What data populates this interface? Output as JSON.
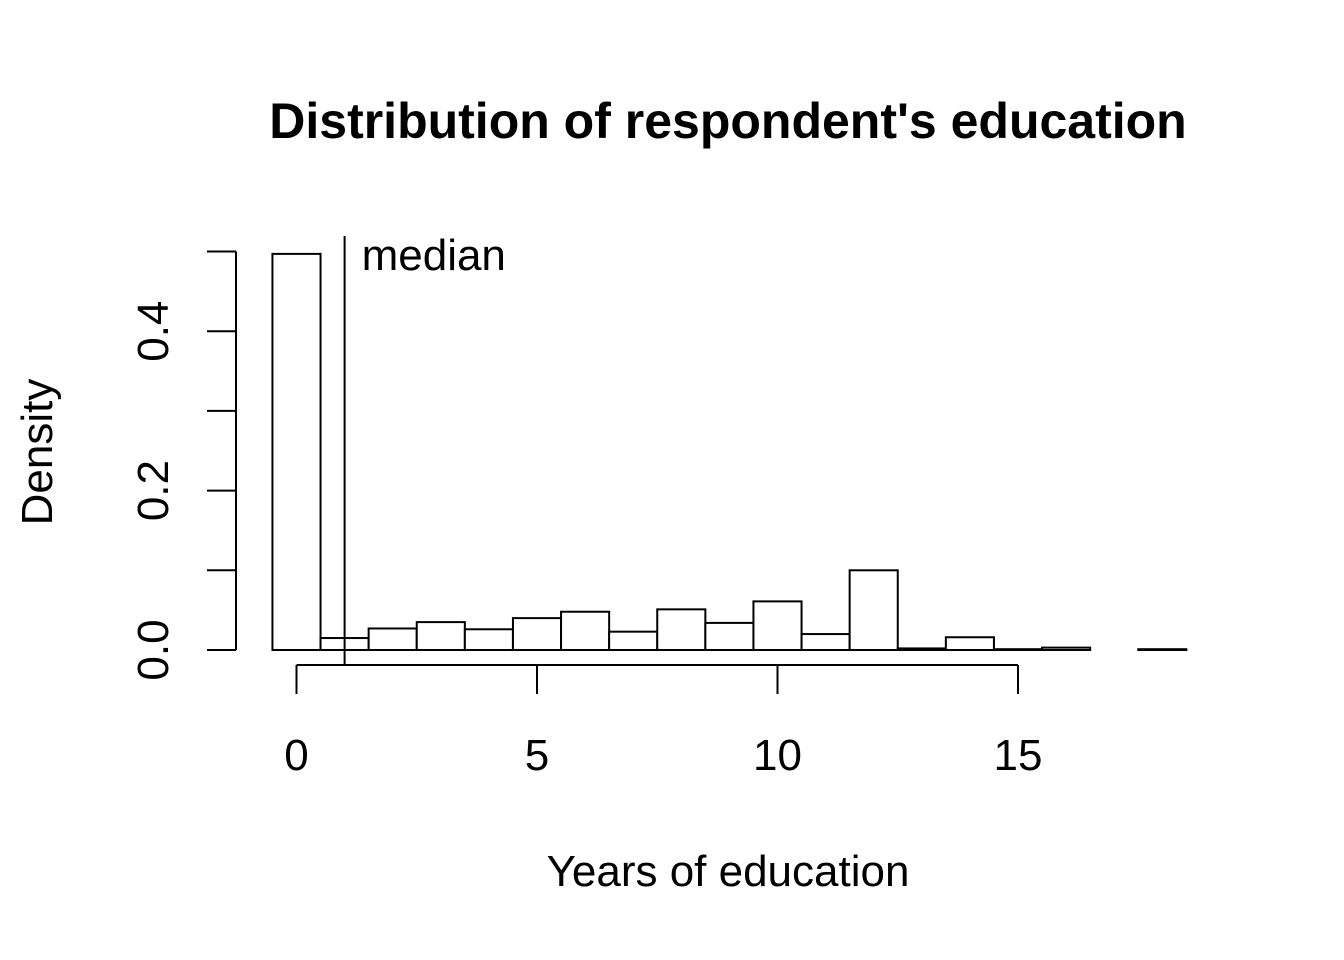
{
  "chart_data": {
    "type": "bar",
    "subtype": "histogram",
    "title": "Distribution of respondent's education",
    "xlabel": "Years of education",
    "ylabel": "Density",
    "bin_width": 1,
    "bins": [
      {
        "start": -0.5,
        "end": 0.5,
        "density": 0.497
      },
      {
        "start": 0.5,
        "end": 1.5,
        "density": 0.015
      },
      {
        "start": 1.5,
        "end": 2.5,
        "density": 0.027
      },
      {
        "start": 2.5,
        "end": 3.5,
        "density": 0.035
      },
      {
        "start": 3.5,
        "end": 4.5,
        "density": 0.026
      },
      {
        "start": 4.5,
        "end": 5.5,
        "density": 0.04
      },
      {
        "start": 5.5,
        "end": 6.5,
        "density": 0.048
      },
      {
        "start": 6.5,
        "end": 7.5,
        "density": 0.023
      },
      {
        "start": 7.5,
        "end": 8.5,
        "density": 0.051
      },
      {
        "start": 8.5,
        "end": 9.5,
        "density": 0.034
      },
      {
        "start": 9.5,
        "end": 10.5,
        "density": 0.061
      },
      {
        "start": 10.5,
        "end": 11.5,
        "density": 0.02
      },
      {
        "start": 11.5,
        "end": 12.5,
        "density": 0.1
      },
      {
        "start": 12.5,
        "end": 13.5,
        "density": 0.002
      },
      {
        "start": 13.5,
        "end": 14.5,
        "density": 0.016
      },
      {
        "start": 14.5,
        "end": 15.5,
        "density": 0.001
      },
      {
        "start": 15.5,
        "end": 16.5,
        "density": 0.003
      },
      {
        "start": 16.5,
        "end": 17.5,
        "density": 0.0
      },
      {
        "start": 17.5,
        "end": 18.5,
        "density": 0.001
      }
    ],
    "x_ticks": [
      0,
      5,
      10,
      15
    ],
    "x_tick_labels": [
      "0",
      "5",
      "10",
      "15"
    ],
    "y_ticks": [
      0.0,
      0.1,
      0.2,
      0.3,
      0.4,
      0.5
    ],
    "y_tick_labels": [
      "0.0",
      "",
      "0.2",
      "",
      "0.4",
      ""
    ],
    "xlim": [
      -0.5,
      18.5
    ],
    "ylim": [
      0,
      0.5
    ],
    "grid": false,
    "annotations": [
      {
        "type": "vline",
        "x": 1,
        "label": "median"
      }
    ]
  }
}
